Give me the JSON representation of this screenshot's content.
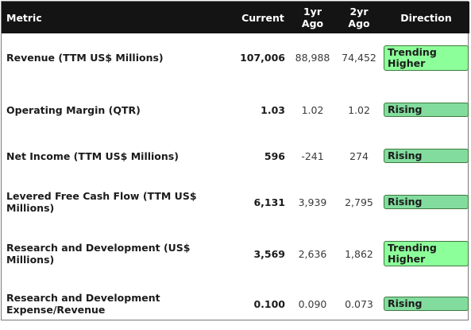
{
  "table": {
    "headers": {
      "metric": "Metric",
      "current": "Current",
      "one_yr_line1": "1yr",
      "one_yr_line2": "Ago",
      "two_yr_line1": "2yr",
      "two_yr_line2": "Ago",
      "direction": "Direction"
    },
    "rows": [
      {
        "metric": "Revenue (TTM US$ Millions)",
        "current": "107,006",
        "one_yr": "88,988",
        "two_yr": "74,452",
        "direction_line1": "Trending",
        "direction_line2": "Higher"
      },
      {
        "metric": "Operating Margin (QTR)",
        "current": "1.03",
        "one_yr": "1.02",
        "two_yr": "1.02",
        "direction_line1": "Rising",
        "direction_line2": ""
      },
      {
        "metric": "Net Income (TTM US$ Millions)",
        "current": "596",
        "one_yr": "-241",
        "two_yr": "274",
        "direction_line1": "Rising",
        "direction_line2": ""
      },
      {
        "metric_line1": "Levered Free Cash Flow (TTM US$",
        "metric_line2": "Millions)",
        "current": "6,131",
        "one_yr": "3,939",
        "two_yr": "2,795",
        "direction_line1": "Rising",
        "direction_line2": ""
      },
      {
        "metric": "Research and Development (US$ Millions)",
        "current": "3,569",
        "one_yr": "2,636",
        "two_yr": "1,862",
        "direction_line1": "Trending",
        "direction_line2": "Higher"
      },
      {
        "metric_line1": "Research and Development",
        "metric_line2": "Expense/Revenue",
        "current": "0.100",
        "one_yr": "0.090",
        "two_yr": "0.073",
        "direction_line1": "Rising",
        "direction_line2": ""
      }
    ],
    "colors": {
      "header_bg": "#141414",
      "rising_badge": "#82dc9e",
      "trending_badge": "#8dff9a"
    }
  }
}
